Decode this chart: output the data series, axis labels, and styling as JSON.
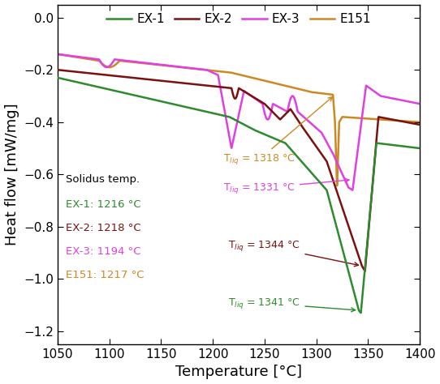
{
  "colors": {
    "EX1": "#2d8a2d",
    "EX2": "#7b1010",
    "EX3": "#e040e0",
    "E151": "#cc8822"
  },
  "xlim": [
    1050,
    1400
  ],
  "ylim": [
    -1.25,
    0.05
  ],
  "xlabel": "Temperature [°C]",
  "ylabel": "Heat flow [mW/mg]",
  "xticks": [
    1050,
    1100,
    1150,
    1200,
    1250,
    1300,
    1350,
    1400
  ],
  "yticks": [
    0.0,
    -0.2,
    -0.4,
    -0.6,
    -0.8,
    -1.0,
    -1.2
  ]
}
